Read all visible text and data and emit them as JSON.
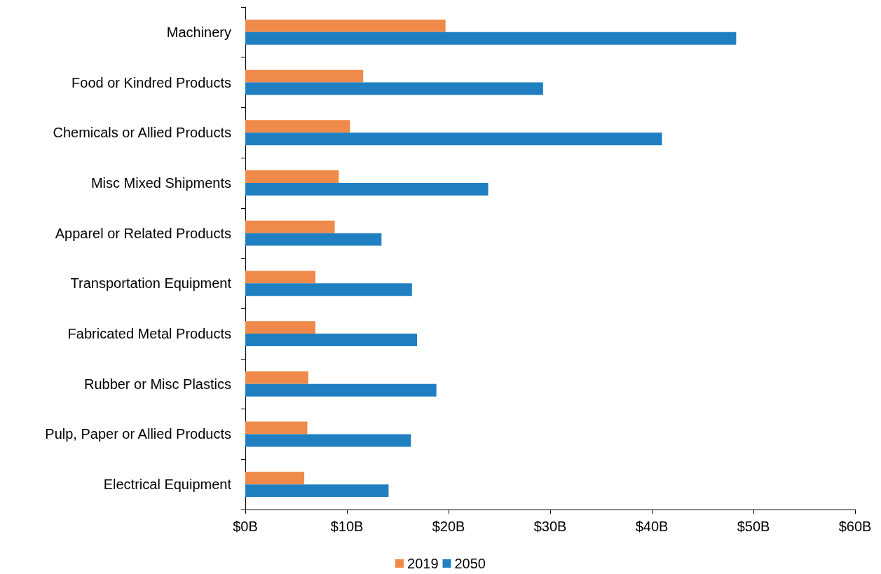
{
  "chart_data": {
    "type": "bar",
    "orientation": "horizontal",
    "categories": [
      "Machinery",
      "Food or Kindred Products",
      "Chemicals or Allied Products",
      "Misc Mixed Shipments",
      "Apparel or Related Products",
      "Transportation Equipment",
      "Fabricated Metal Products",
      "Rubber or Misc Plastics",
      "Pulp, Paper or Allied Products",
      "Electrical Equipment"
    ],
    "series": [
      {
        "name": "2019",
        "color": "#ef8a4a",
        "values": [
          19.7,
          11.6,
          10.3,
          9.2,
          8.8,
          6.9,
          6.9,
          6.2,
          6.1,
          5.8
        ]
      },
      {
        "name": "2050",
        "color": "#1f7fc1",
        "values": [
          48.3,
          29.3,
          41.0,
          23.9,
          13.4,
          16.4,
          16.9,
          18.8,
          16.3,
          14.1
        ]
      }
    ],
    "xlim": [
      0,
      60
    ],
    "xticks": [
      {
        "value": 0,
        "label": "$0B"
      },
      {
        "value": 10,
        "label": "$10B"
      },
      {
        "value": 20,
        "label": "$20B"
      },
      {
        "value": 30,
        "label": "$30B"
      },
      {
        "value": 40,
        "label": "$40B"
      },
      {
        "value": 50,
        "label": "$50B"
      },
      {
        "value": 60,
        "label": "$60B"
      }
    ],
    "grid": false,
    "legend": "bottom"
  }
}
